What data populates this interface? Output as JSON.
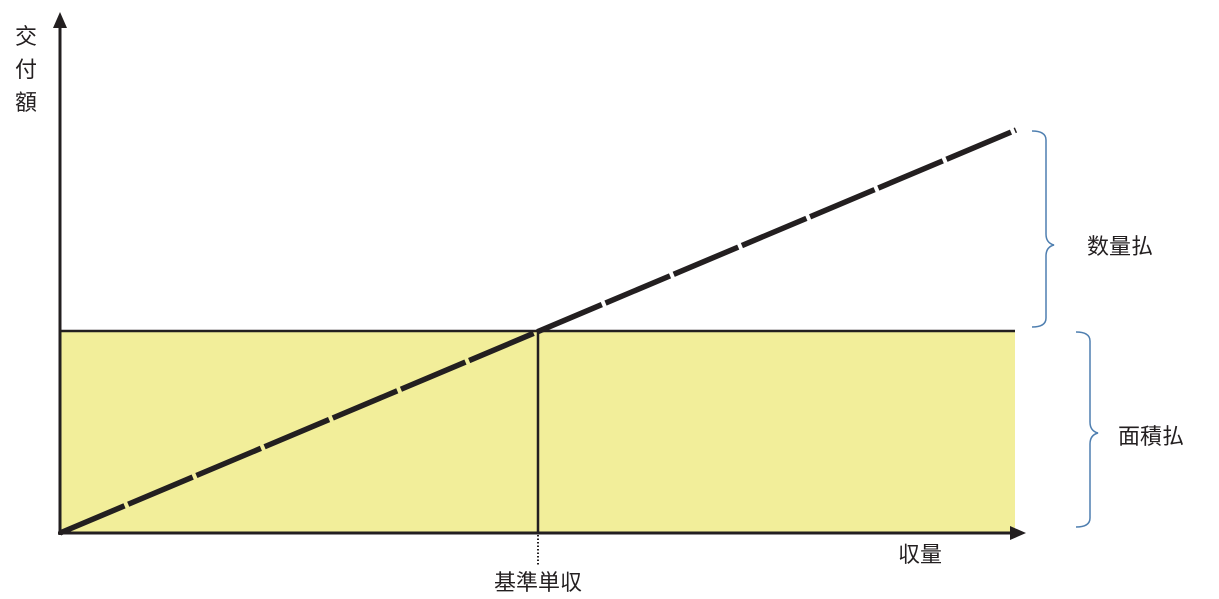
{
  "y_axis_label": [
    "交",
    "付",
    "額"
  ],
  "x_axis_label": "収量",
  "baseline_label": "基準単収",
  "upper_bracket_label": "数量払",
  "lower_bracket_label": "面積払",
  "colors": {
    "area_fill": "#f2ee9a",
    "axis": "#231f20",
    "bracket": "#4f7fb0"
  }
}
